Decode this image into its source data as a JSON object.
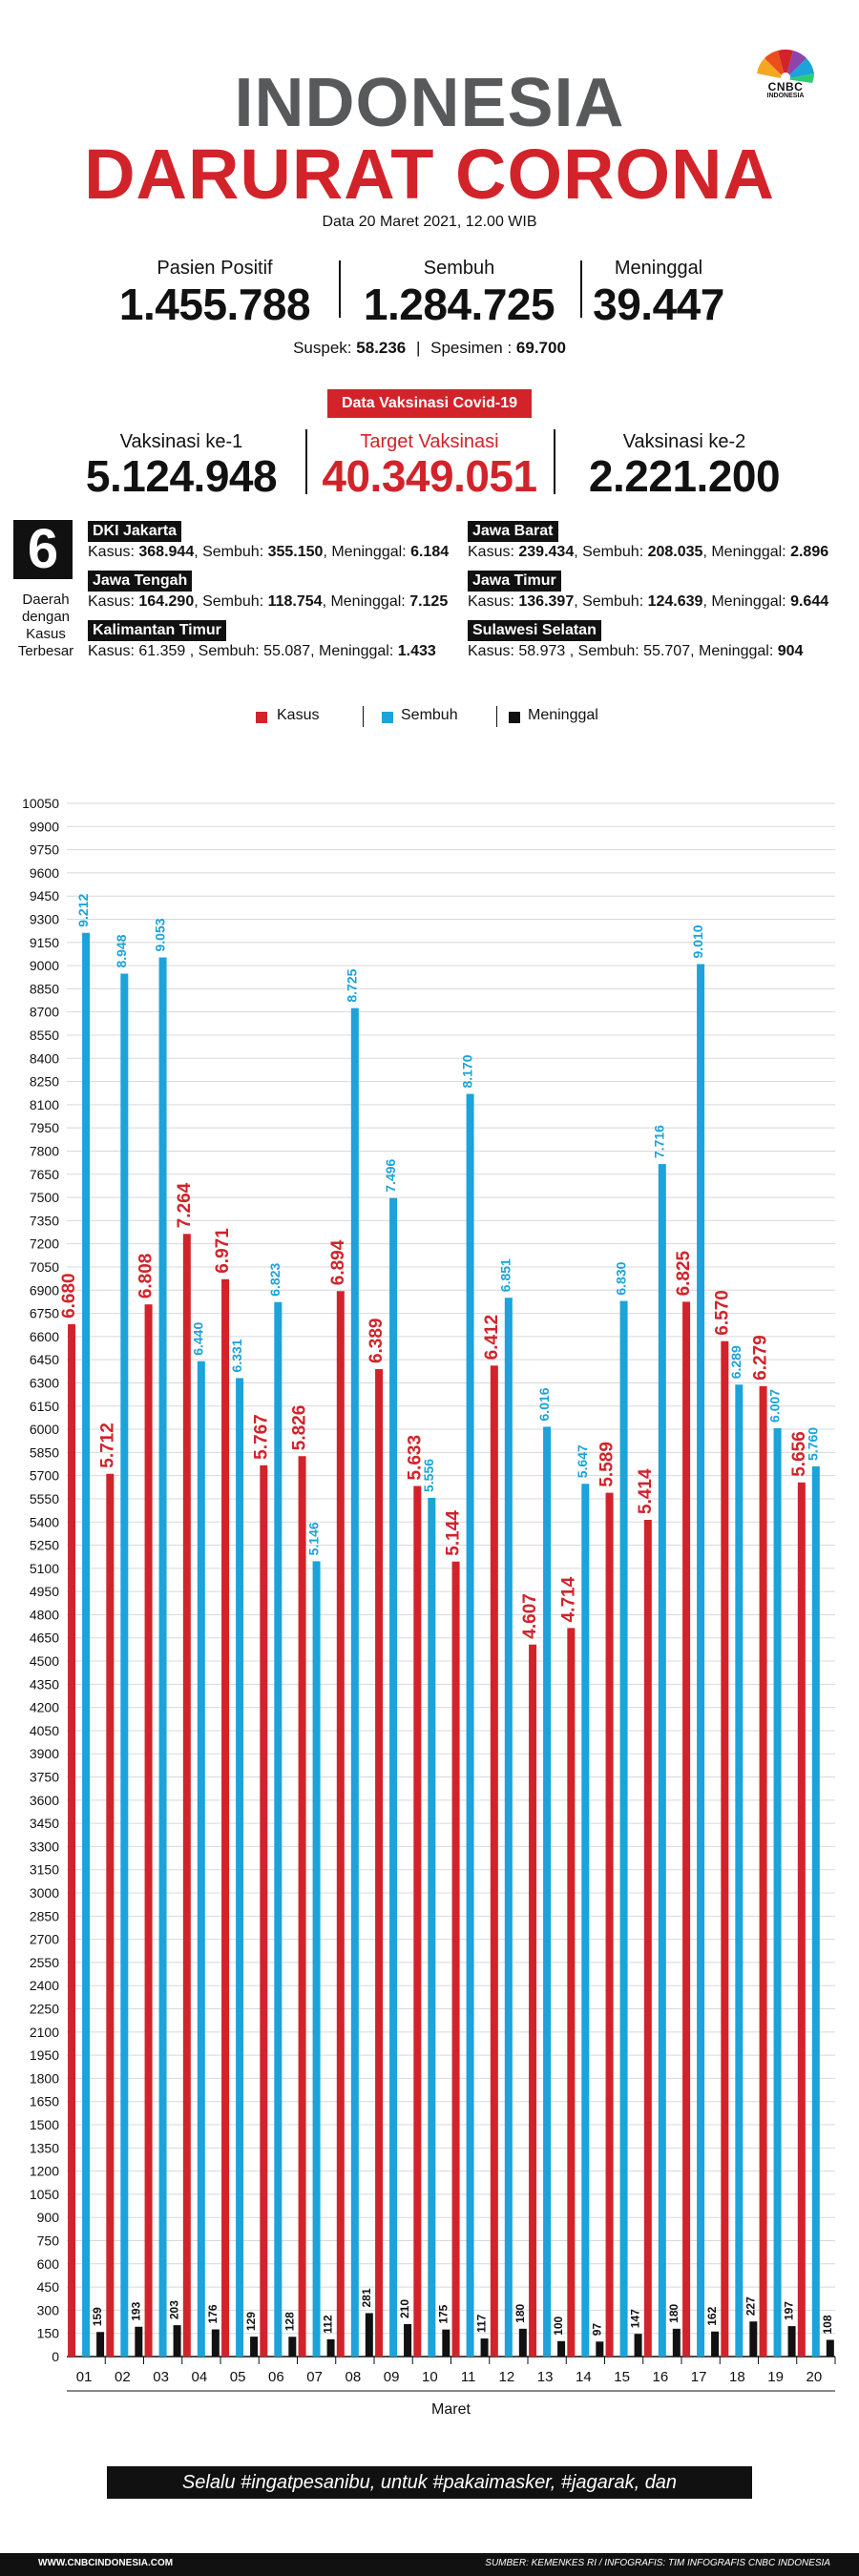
{
  "header": {
    "logo_text": "CNBC",
    "logo_sub": "INDONESIA",
    "title_line1": "INDONESIA",
    "title_line2": "DARURAT CORONA",
    "date": "Data 20 Maret 2021, 12.00 WIB"
  },
  "stats": [
    {
      "label": "Pasien Positif",
      "value": "1.455.788"
    },
    {
      "label": "Sembuh",
      "value": "1.284.725"
    },
    {
      "label": "Meninggal",
      "value": "39.447"
    }
  ],
  "suspek": {
    "label": "Suspek:",
    "value": "58.236",
    "sep": "|",
    "spesimen_label": "Spesimen :",
    "spesimen_value": "69.700"
  },
  "vaksinasi": {
    "badge": "Data Vaksinasi Covid-19",
    "items": [
      {
        "label": "Vaksinasi ke-1",
        "value": "5.124.948"
      },
      {
        "label": "Target Vaksinasi",
        "value": "40.349.051"
      },
      {
        "label": "Vaksinasi ke-2",
        "value": "2.221.200"
      }
    ]
  },
  "regions": {
    "number": "6",
    "caption": "Daerah dengan Kasus Terbesar",
    "kasus_label": "Kasus:",
    "sembuh_label": "Sembuh:",
    "meninggal_label": "Meninggal:",
    "items": [
      {
        "name": "DKI Jakarta",
        "kasus": "368.944",
        "sembuh": "355.150",
        "meninggal": "6.184"
      },
      {
        "name": "Jawa Barat",
        "kasus": "239.434",
        "sembuh": "208.035",
        "meninggal": "2.896"
      },
      {
        "name": "Jawa Tengah",
        "kasus": "164.290",
        "sembuh": "118.754",
        "meninggal": "7.125"
      },
      {
        "name": "Jawa Timur",
        "kasus": "136.397",
        "sembuh": "124.639",
        "meninggal": "9.644"
      },
      {
        "name": "Kalimantan Timur",
        "kasus": "61.359 ",
        "sembuh": "55.087",
        "meninggal": "1.433"
      },
      {
        "name": "Sulawesi Selatan",
        "kasus": "58.973 ",
        "sembuh": "55.707",
        "meninggal": "904"
      }
    ]
  },
  "legend": [
    {
      "label": "Kasus",
      "color": "#d2232a"
    },
    {
      "label": "Sembuh",
      "color": "#1ba3da"
    },
    {
      "label": "Meninggal",
      "color": "#111111"
    }
  ],
  "chart_data": {
    "type": "bar",
    "xlabel": "Maret",
    "ylabel": "",
    "ylim": [
      0,
      10050
    ],
    "ytick_step": 150,
    "categories": [
      "01",
      "02",
      "03",
      "04",
      "05",
      "06",
      "07",
      "08",
      "09",
      "10",
      "11",
      "12",
      "13",
      "14",
      "15",
      "16",
      "17",
      "18",
      "19",
      "20"
    ],
    "series": [
      {
        "name": "Kasus",
        "color": "#d2232a",
        "values": [
          6680,
          5712,
          6808,
          7264,
          6971,
          5767,
          5826,
          6894,
          6389,
          5633,
          5144,
          6412,
          4607,
          4714,
          5589,
          5414,
          6825,
          6570,
          6279,
          5656
        ],
        "labels": [
          "6.680",
          "5.712",
          "6.808",
          "7.264",
          "6.971",
          "5.767",
          "5.826",
          "6.894",
          "6.389",
          "5.633",
          "5.144",
          "6.412",
          "4.607",
          "4.714",
          "5.589",
          "5.414",
          "6.825",
          "6.570",
          "6.279",
          "5.656"
        ]
      },
      {
        "name": "Sembuh",
        "color": "#1ba3da",
        "values": [
          9212,
          8948,
          9053,
          6440,
          6331,
          6823,
          5146,
          8725,
          7496,
          5556,
          8170,
          6851,
          6016,
          5647,
          6830,
          7716,
          9010,
          6289,
          6007,
          5760
        ],
        "labels": [
          "9.212",
          "8.948",
          "9.053",
          "6.440",
          "6.331",
          "6.823",
          "5.146",
          "8.725",
          "7.496",
          "5.556",
          "8.170",
          "6.851",
          "6.016",
          "5.647",
          "6.830",
          "7.716",
          "9.010",
          "6.289",
          "6.007",
          "5.760"
        ]
      },
      {
        "name": "Meninggal",
        "color": "#111111",
        "values": [
          159,
          193,
          203,
          176,
          129,
          128,
          112,
          281,
          210,
          175,
          117,
          180,
          100,
          97,
          147,
          180,
          162,
          227,
          197,
          108
        ],
        "labels": [
          "159",
          "193",
          "203",
          "176",
          "129",
          "128",
          "112",
          "281",
          "210",
          "175",
          "117",
          "180",
          "100",
          "97",
          "147",
          "180",
          "162",
          "227",
          "197",
          "108"
        ]
      }
    ]
  },
  "footer": {
    "banner": "Selalu #ingatpesanibu, untuk #pakaimasker, #jagarak, dan #cucitanganpakaisabun",
    "site": "WWW.CNBCINDONESIA.COM",
    "source": "SUMBER: KEMENKES RI / INFOGRAFIS: TIM INFOGRAFIS CNBC INDONESIA"
  }
}
